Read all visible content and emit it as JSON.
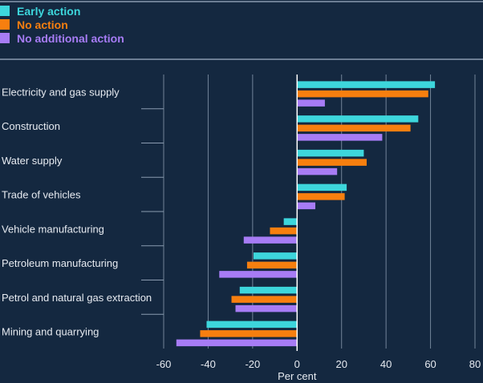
{
  "chart_data": {
    "type": "bar",
    "orientation": "horizontal",
    "xlabel": "Per cent",
    "xlim": [
      -60,
      80
    ],
    "xticks": [
      -60,
      -40,
      -20,
      0,
      20,
      40,
      60,
      80
    ],
    "grid": true,
    "legend_placement": "top-left",
    "categories": [
      "Electricity and gas supply",
      "Construction",
      "Water supply",
      "Trade of vehicles",
      "Vehicle manufacturing",
      "Petroleum manufacturing",
      "Petrol and natural gas extraction",
      "Mining and quarrying"
    ],
    "series": [
      {
        "name": "Early action",
        "color": "#3dd6dc",
        "values": [
          62,
          54.5,
          30,
          22.3,
          -6,
          -19.6,
          -25.8,
          -40.7
        ]
      },
      {
        "name": "No action",
        "color": "#f77f0f",
        "values": [
          59,
          51,
          31.3,
          21.4,
          -12.2,
          -22.5,
          -29.5,
          -43.6
        ]
      },
      {
        "name": "No additional action",
        "color": "#a77cf5",
        "values": [
          12.5,
          38.3,
          18,
          8.2,
          -24,
          -35,
          -27.7,
          -54.3
        ]
      }
    ]
  },
  "colors": {
    "background": "#142840",
    "grid": "#8a9bb0",
    "text": "#e6eaf0"
  }
}
